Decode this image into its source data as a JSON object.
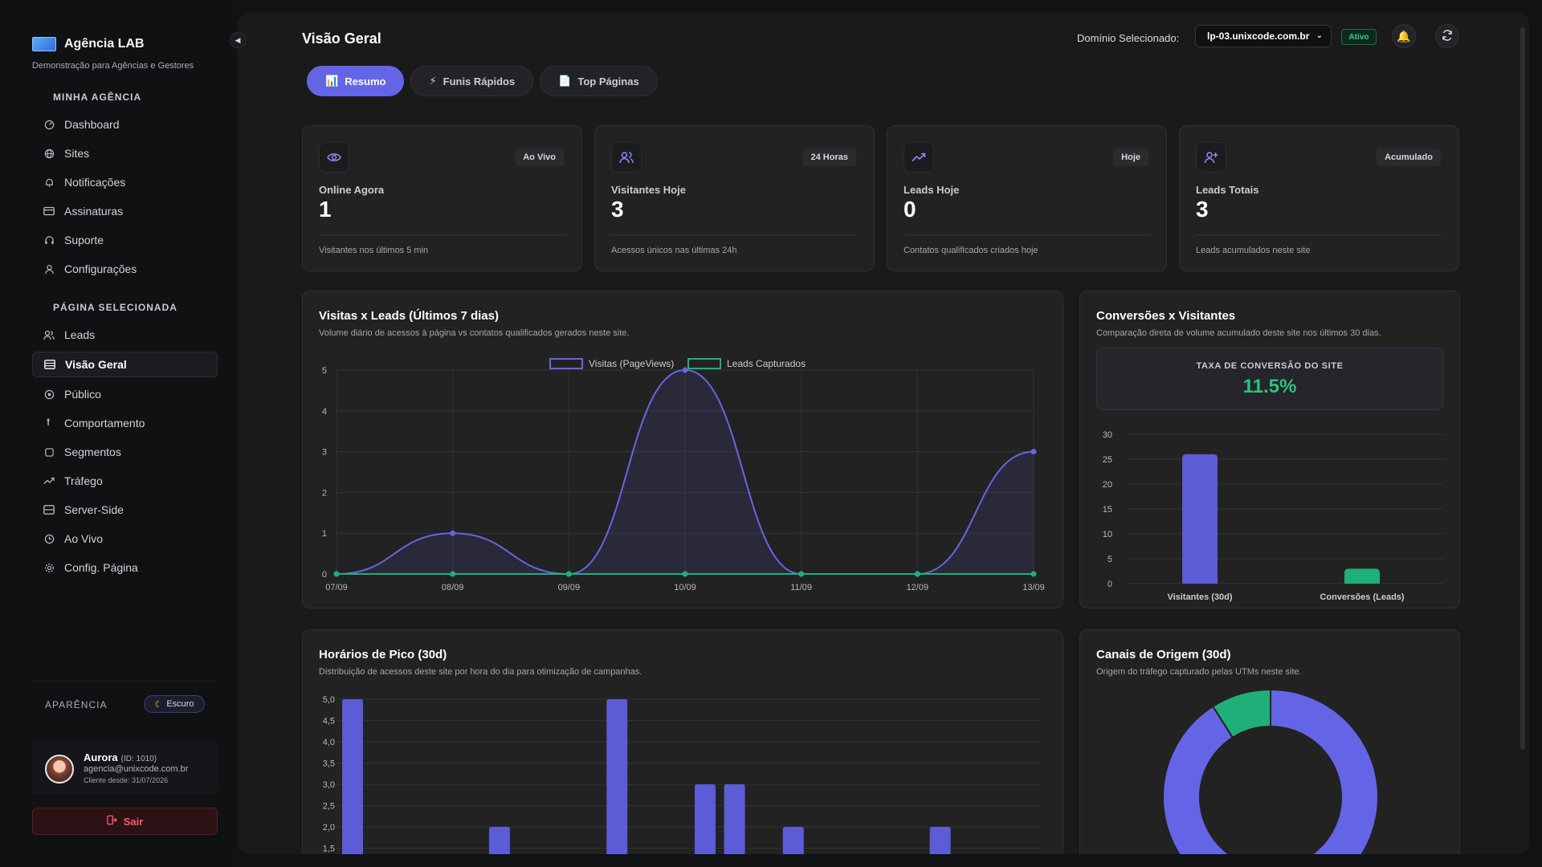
{
  "brand": {
    "name": "Agência LAB",
    "subtitle": "Demonstração para Agências e Gestores"
  },
  "sidebar": {
    "section_agency": "MINHA AGÊNCIA",
    "agency_items": [
      {
        "label": "Dashboard",
        "icon": "dashboard-icon"
      },
      {
        "label": "Sites",
        "icon": "globe-icon"
      },
      {
        "label": "Notificações",
        "icon": "bell-icon"
      },
      {
        "label": "Assinaturas",
        "icon": "credit-card-icon"
      },
      {
        "label": "Suporte",
        "icon": "headset-icon"
      },
      {
        "label": "Configurações",
        "icon": "user-cog-icon"
      }
    ],
    "section_page": "PÁGINA SELECIONADA",
    "page_items": [
      {
        "label": "Leads",
        "icon": "users-icon"
      },
      {
        "label": "Visão Geral",
        "icon": "layout-icon",
        "active": true
      },
      {
        "label": "Público",
        "icon": "target-icon"
      },
      {
        "label": "Comportamento",
        "icon": "pointer-icon"
      },
      {
        "label": "Segmentos",
        "icon": "square-icon"
      },
      {
        "label": "Tráfego",
        "icon": "trending-icon"
      },
      {
        "label": "Server-Side",
        "icon": "server-icon"
      },
      {
        "label": "Ao Vivo",
        "icon": "clock-icon"
      },
      {
        "label": "Config. Página",
        "icon": "gear-icon"
      }
    ],
    "appearance_label": "APARÊNCIA",
    "theme_label": "Escuro",
    "user": {
      "name": "Aurora",
      "id": "(ID: 1010)",
      "email": "agencia@unixcode.com.br",
      "since": "Cliente desde: 31/07/2026"
    },
    "logout_label": "Sair"
  },
  "header": {
    "title": "Visão Geral",
    "domain_label": "Domínio Selecionado:",
    "domain_value": "lp-03.unixcode.com.br",
    "status": "Ativo"
  },
  "tabs": [
    {
      "label": "Resumo",
      "icon": "📊",
      "active": true
    },
    {
      "label": "Funis Rápidos",
      "icon": "⚡"
    },
    {
      "label": "Top Páginas",
      "icon": "📄"
    }
  ],
  "kpis": [
    {
      "tag": "Ao Vivo",
      "label": "Online Agora",
      "value": "1",
      "desc": "Visitantes nos últimos 5 min",
      "icon": "eye-icon"
    },
    {
      "tag": "24 Horas",
      "label": "Visitantes Hoje",
      "value": "3",
      "desc": "Acessos únicos nas últimas 24h",
      "icon": "users-icon"
    },
    {
      "tag": "Hoje",
      "label": "Leads Hoje",
      "value": "0",
      "desc": "Contatos qualificados criados hoje",
      "icon": "trending-up-icon"
    },
    {
      "tag": "Acumulado",
      "label": "Leads Totais",
      "value": "3",
      "desc": "Leads acumulados neste site",
      "icon": "user-plus-icon"
    }
  ],
  "visits_card": {
    "title": "Visitas x Leads (Últimos 7 dias)",
    "subtitle": "Volume diário de acessos à página vs contatos qualificados gerados neste site."
  },
  "conversion_card": {
    "title": "Conversões x Visitantes",
    "subtitle": "Comparação direta de volume acumulado deste site nos últimos 30 dias.",
    "rate_label": "TAXA DE CONVERSÃO DO SITE",
    "rate_value": "11.5%"
  },
  "peak_card": {
    "title": "Horários de Pico (30d)",
    "subtitle": "Distribuição de acessos deste site por hora do dia para otimização de campanhas."
  },
  "channels_card": {
    "title": "Canais de Origem (30d)",
    "subtitle": "Origem do tráfego capturado pelas UTMs neste site."
  },
  "chart_data": [
    {
      "type": "line",
      "x": [
        "07/09",
        "08/09",
        "09/09",
        "10/09",
        "11/09",
        "12/09",
        "13/09"
      ],
      "series": [
        {
          "name": "Visitas (PageViews)",
          "values": [
            0,
            1,
            0,
            5,
            0,
            0,
            3
          ],
          "color": "#6566e4"
        },
        {
          "name": "Leads Capturados",
          "values": [
            0,
            0,
            0,
            0,
            0,
            0,
            0
          ],
          "color": "#1fb07a"
        }
      ],
      "ylim": [
        0,
        5
      ],
      "yticks": [
        "0",
        "1",
        "2",
        "3",
        "4",
        "5"
      ],
      "legend": "top-center",
      "grid": true
    },
    {
      "type": "bar",
      "categories": [
        "Visitantes (30d)",
        "Conversões (Leads)"
      ],
      "values": [
        26,
        3
      ],
      "colors": [
        "#5b5cd6",
        "#1fb07a"
      ],
      "ylim": [
        0,
        30
      ],
      "yticks": [
        "0",
        "5",
        "10",
        "15",
        "20",
        "25",
        "30"
      ],
      "grid": true
    },
    {
      "type": "bar",
      "values": [
        5,
        0,
        0,
        0,
        0,
        2,
        0,
        0,
        0,
        5,
        0,
        0,
        3,
        3,
        0,
        2,
        0,
        0,
        0,
        0,
        2,
        0,
        0,
        0
      ],
      "ylim_visible": [
        1.5,
        5.0
      ],
      "yticks": [
        "1,5",
        "2,0",
        "2,5",
        "3,0",
        "3,5",
        "4,0",
        "4,5",
        "5,0"
      ],
      "color": "#5b5cd6",
      "grid": true
    },
    {
      "type": "pie",
      "values": [
        91,
        9
      ],
      "colors": [
        "#6465e6",
        "#1fb07a"
      ]
    }
  ]
}
